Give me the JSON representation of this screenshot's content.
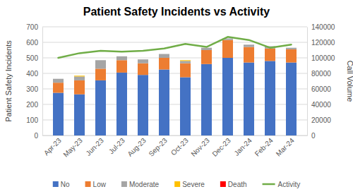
{
  "chart_data": {
    "type": "bar",
    "title": "Patient Safety Incidents vs Activity",
    "y_label": "Patient Safety Incidents",
    "y2_label": "Call Volume",
    "categories": [
      "Apr-23",
      "May-23",
      "Jun-23",
      "Jul-23",
      "Aug-23",
      "Sep-23",
      "Oct-23",
      "Nov-23",
      "Dec-23",
      "Jan-24",
      "Feb-24",
      "Mar-24"
    ],
    "series": [
      {
        "name": "No",
        "color": "#4472c4",
        "type": "bar",
        "values": [
          275,
          265,
          355,
          405,
          390,
          425,
          375,
          460,
          500,
          470,
          480,
          470
        ]
      },
      {
        "name": "Low",
        "color": "#ed7d31",
        "type": "bar",
        "values": [
          65,
          90,
          75,
          80,
          75,
          75,
          90,
          90,
          115,
          100,
          80,
          85
        ]
      },
      {
        "name": "Moderate",
        "color": "#a5a5a5",
        "type": "bar",
        "values": [
          25,
          25,
          55,
          25,
          25,
          25,
          15,
          15,
          10,
          15,
          15,
          10
        ]
      },
      {
        "name": "Severe",
        "color": "#ffc000",
        "type": "bar",
        "values": [
          0,
          5,
          0,
          0,
          0,
          0,
          5,
          0,
          0,
          0,
          0,
          0
        ]
      },
      {
        "name": "Death",
        "color": "#ff0000",
        "type": "bar",
        "values": [
          0,
          0,
          0,
          0,
          0,
          0,
          0,
          0,
          0,
          0,
          0,
          0
        ]
      },
      {
        "name": "Activity",
        "color": "#70ad47",
        "type": "line",
        "axis": "y2",
        "values": [
          100000,
          106000,
          109000,
          108000,
          109000,
          112000,
          118000,
          114000,
          127000,
          123000,
          113000,
          117000
        ]
      }
    ],
    "stacked": true,
    "grid": true,
    "legend": "bottom",
    "ylim": [
      0,
      700
    ],
    "yticks": [
      0,
      100,
      200,
      300,
      400,
      500,
      600,
      700
    ],
    "y2lim": [
      0,
      140000
    ],
    "y2ticks": [
      0,
      20000,
      40000,
      60000,
      80000,
      100000,
      120000,
      140000
    ]
  }
}
